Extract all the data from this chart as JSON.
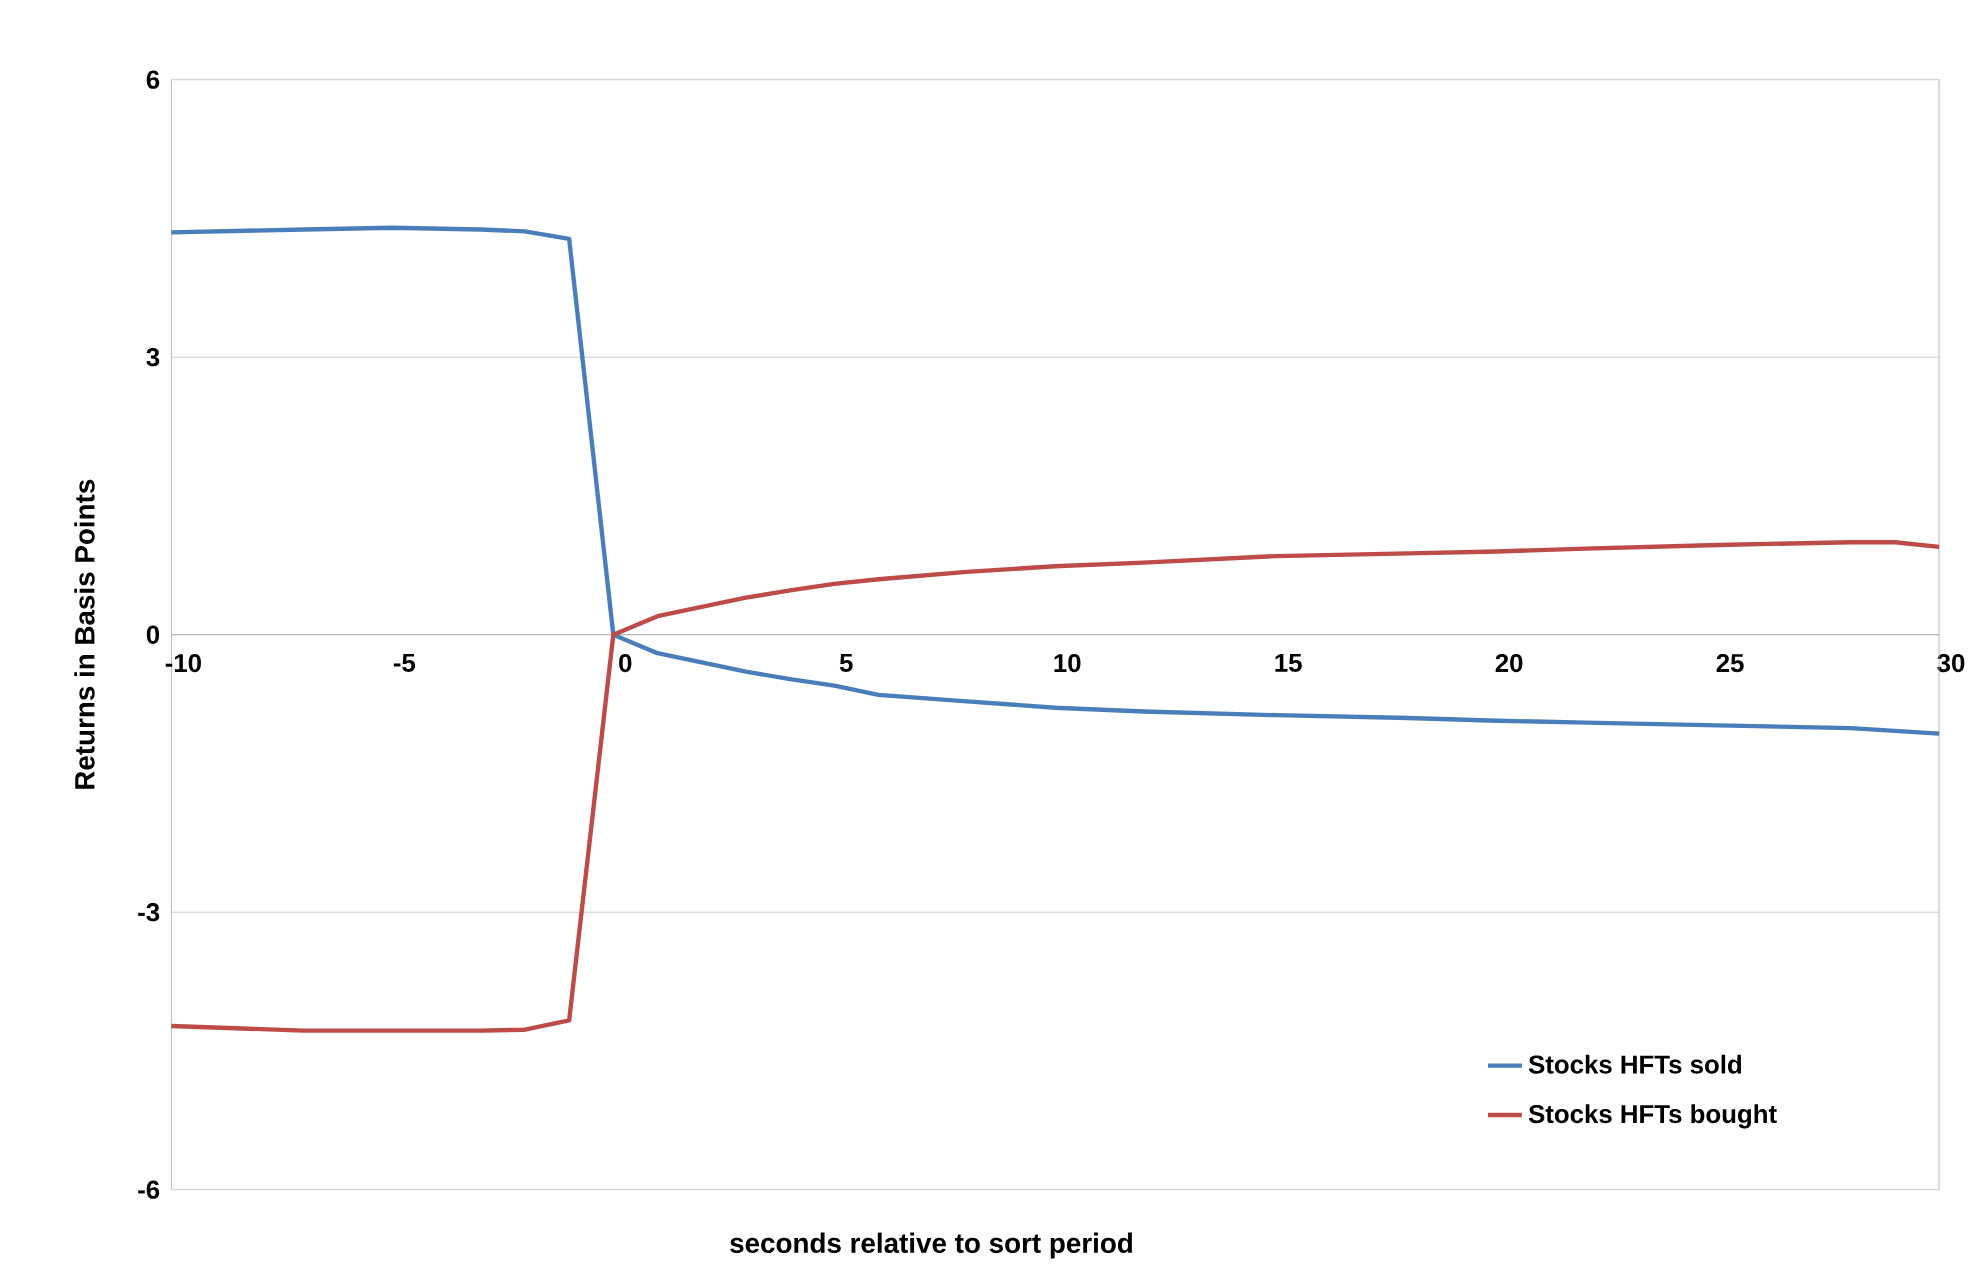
{
  "chart_data": {
    "type": "line",
    "xlabel": "seconds relative to sort period",
    "ylabel": "Returns in Basis Points",
    "xlim": [
      -10,
      30
    ],
    "xticks": [
      -10,
      -5,
      0,
      5,
      10,
      15,
      20,
      25,
      30
    ],
    "ylim": [
      -6,
      6
    ],
    "yticks": [
      -6,
      -3,
      0,
      3,
      6
    ],
    "grid": "y",
    "legend": "bottom right",
    "marker": "none",
    "line_style": "solid",
    "series": [
      {
        "name": "Stocks HFTs sold",
        "color": "#4a7ebb",
        "x": [
          -10,
          -7,
          -5,
          -3,
          -2,
          -1,
          0,
          1,
          2,
          3,
          4,
          5,
          6,
          8,
          10,
          12,
          15,
          18,
          20,
          22,
          25,
          28,
          30
        ],
        "values": [
          4.35,
          4.38,
          4.4,
          4.38,
          4.36,
          4.28,
          0,
          -0.2,
          -0.3,
          -0.4,
          -0.48,
          -0.55,
          -0.65,
          -0.72,
          -0.79,
          -0.83,
          -0.87,
          -0.9,
          -0.93,
          -0.95,
          -0.98,
          -1.01,
          -1.07
        ]
      },
      {
        "name": "Stocks HFTs bought",
        "color": "#be4b48",
        "x": [
          -10,
          -7,
          -5,
          -3,
          -2,
          -1,
          0,
          1,
          2,
          3,
          4,
          5,
          6,
          8,
          10,
          12,
          15,
          18,
          20,
          22,
          25,
          28,
          29,
          30
        ],
        "values": [
          -4.23,
          -4.28,
          -4.28,
          -4.28,
          -4.27,
          -4.17,
          0,
          0.2,
          0.3,
          0.4,
          0.48,
          0.55,
          0.6,
          0.68,
          0.74,
          0.78,
          0.85,
          0.88,
          0.9,
          0.93,
          0.97,
          1.0,
          1.0,
          0.95
        ]
      }
    ]
  }
}
